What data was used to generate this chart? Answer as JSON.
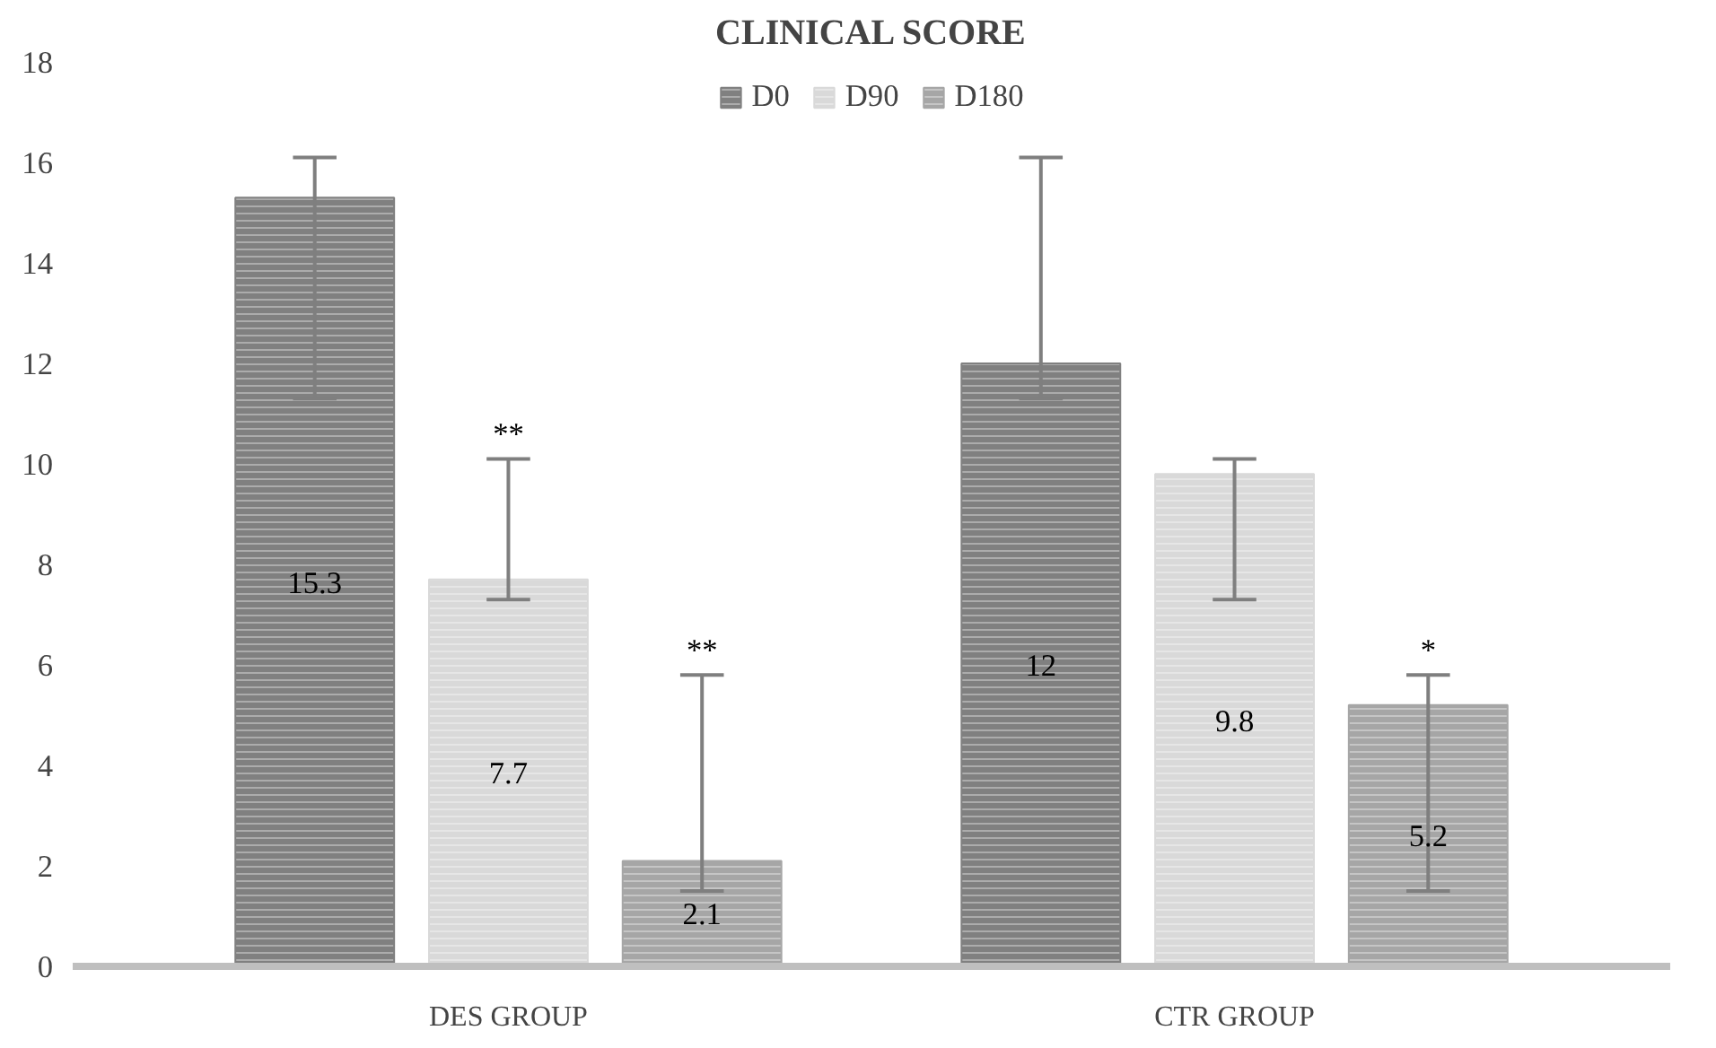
{
  "chart_data": {
    "type": "bar",
    "title": "CLINICAL SCORE",
    "categories": [
      "DES GROUP",
      "CTR GROUP"
    ],
    "series": [
      {
        "name": "D0",
        "color": "#808080",
        "values": [
          15.3,
          12
        ],
        "errors": [
          [
            11.3,
            16.1
          ],
          [
            11.3,
            16.1
          ]
        ]
      },
      {
        "name": "D90",
        "color": "#d9d9d9",
        "values": [
          7.7,
          9.8
        ],
        "errors": [
          [
            7.3,
            10.1
          ],
          [
            7.3,
            10.1
          ]
        ]
      },
      {
        "name": "D180",
        "color": "#a6a6a6",
        "values": [
          2.1,
          5.2
        ],
        "errors": [
          [
            1.5,
            5.8
          ],
          [
            1.5,
            5.8
          ]
        ]
      }
    ],
    "ylim": [
      0,
      18
    ],
    "yticks": [
      0,
      2,
      4,
      6,
      8,
      10,
      12,
      14,
      16,
      18
    ],
    "grid": false,
    "legend": "top",
    "data_labels": true,
    "annotations": [
      {
        "text": "**",
        "x": "DES GROUP",
        "y": 10.1
      },
      "**",
      "*"
    ]
  }
}
